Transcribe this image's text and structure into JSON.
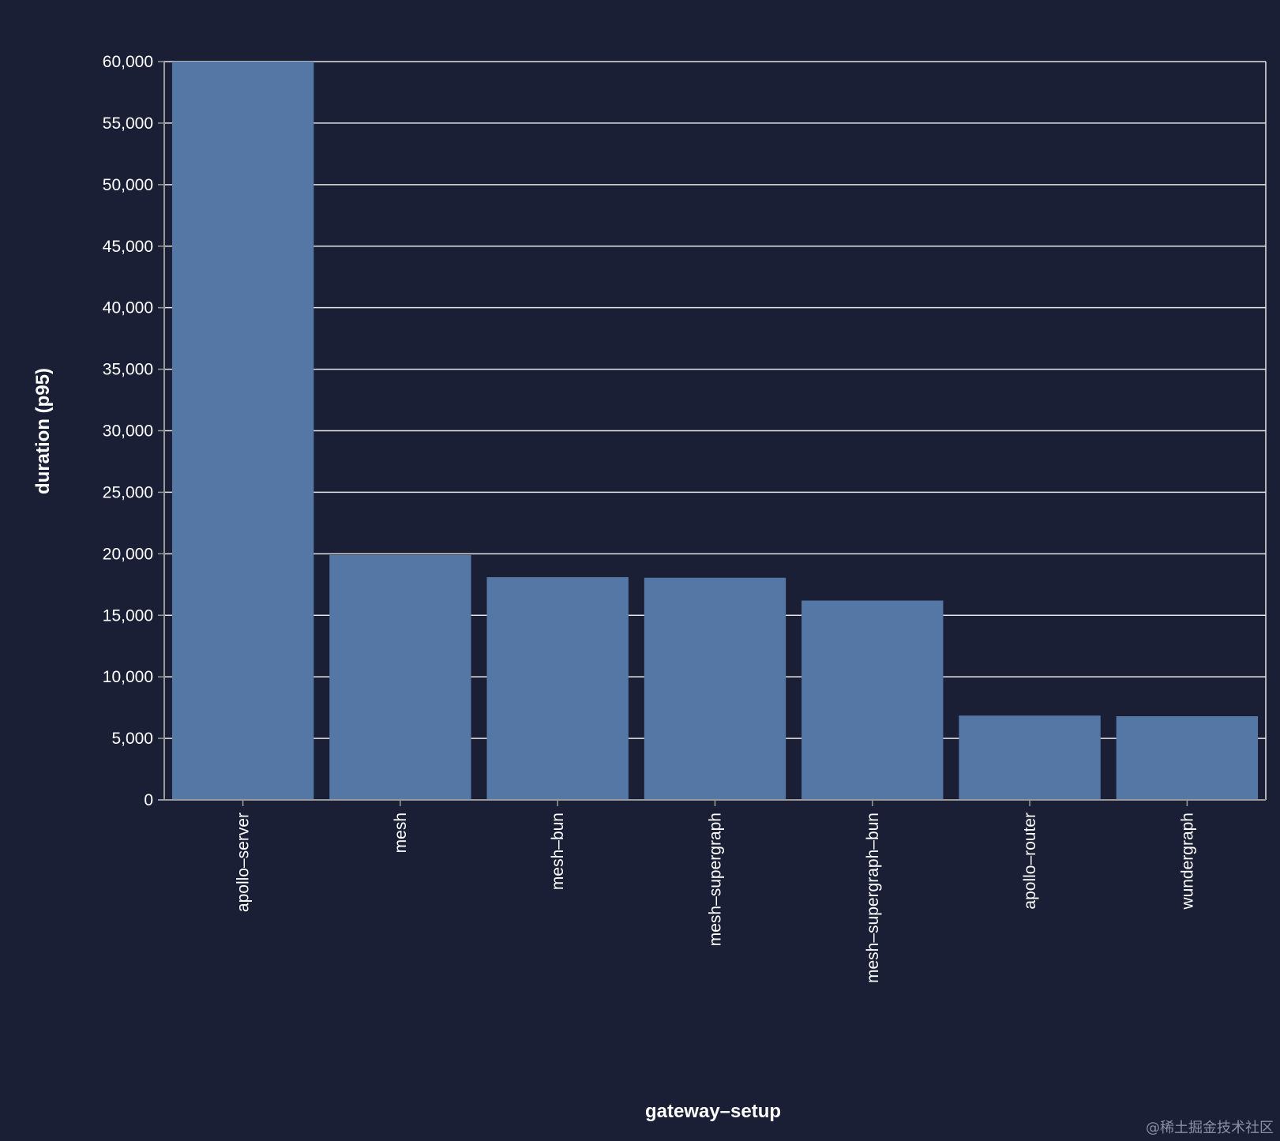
{
  "chart_data": {
    "type": "bar",
    "categories": [
      "apollo-server",
      "mesh",
      "mesh-bun",
      "mesh-supergraph",
      "mesh-supergraph-bun",
      "apollo-router",
      "wundergraph"
    ],
    "values": [
      60000,
      19900,
      18100,
      18050,
      16200,
      6850,
      6800
    ],
    "title": "",
    "xlabel": "gateway–setup",
    "ylabel": "duration (p95)",
    "ylim": [
      0,
      60000
    ],
    "yticks": [
      0,
      5000,
      10000,
      15000,
      20000,
      25000,
      30000,
      35000,
      40000,
      45000,
      50000,
      55000,
      60000
    ],
    "ytick_labels": [
      "0",
      "5,000",
      "10,000",
      "15,000",
      "20,000",
      "25,000",
      "30,000",
      "35,000",
      "40,000",
      "45,000",
      "50,000",
      "55,000",
      "60,000"
    ],
    "xtick_labels": [
      "apollo–server",
      "mesh",
      "mesh–bun",
      "mesh–supergraph",
      "mesh–supergraph–bun",
      "apollo–router",
      "wundergraph"
    ],
    "grid": true,
    "colors": {
      "background": "#1a1f36",
      "bar": "#5577a5",
      "grid": "#e6e6e6",
      "axis": "#9a9a9a",
      "text": "#ffffff"
    }
  },
  "watermark": "@稀土掘金技术社区"
}
